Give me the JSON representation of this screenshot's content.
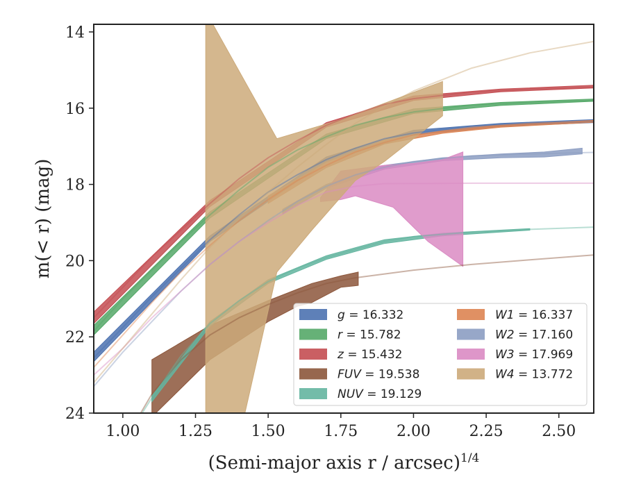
{
  "chart_data": {
    "type": "line",
    "xlabel": "(Semi-major axis r / arcsec)",
    "xlabel_exponent": "1/4",
    "ylabel": "m(< r) (mag)",
    "xlim": [
      0.9,
      2.62
    ],
    "ylim": [
      24,
      13.8
    ],
    "y_inverted": true,
    "xticks": [
      "1.00",
      "1.25",
      "1.50",
      "1.75",
      "2.00",
      "2.25",
      "2.50"
    ],
    "yticks": [
      "14",
      "16",
      "18",
      "20",
      "22",
      "24"
    ],
    "grid": false,
    "legend_location": "lower-right",
    "series": [
      {
        "name": "g",
        "value": "16.332",
        "color": "#4c72b0",
        "faint_curve": [
          [
            0.9,
            22.55
          ],
          [
            1.0,
            21.75
          ],
          [
            1.1,
            20.95
          ],
          [
            1.2,
            20.2
          ],
          [
            1.3,
            19.45
          ],
          [
            1.4,
            18.8
          ],
          [
            1.5,
            18.2
          ],
          [
            1.6,
            17.75
          ],
          [
            1.7,
            17.35
          ],
          [
            1.8,
            17.05
          ],
          [
            1.9,
            16.8
          ],
          [
            2.0,
            16.65
          ],
          [
            2.2,
            16.47
          ],
          [
            2.4,
            16.4
          ],
          [
            2.62,
            16.35
          ]
        ],
        "band_upper": [
          [
            0.9,
            22.4
          ],
          [
            1.3,
            19.35
          ],
          [
            1.7,
            17.28
          ],
          [
            2.0,
            16.58
          ],
          [
            2.3,
            16.4
          ],
          [
            2.62,
            16.3
          ]
        ],
        "band_lower": [
          [
            0.9,
            22.65
          ],
          [
            1.3,
            19.5
          ],
          [
            1.7,
            17.4
          ],
          [
            2.0,
            16.7
          ],
          [
            2.3,
            16.48
          ],
          [
            2.62,
            16.38
          ]
        ]
      },
      {
        "name": "r",
        "value": "15.782",
        "color": "#55a868",
        "faint_curve": [
          [
            0.9,
            21.85
          ],
          [
            1.0,
            21.0
          ],
          [
            1.1,
            20.25
          ],
          [
            1.2,
            19.5
          ],
          [
            1.3,
            18.8
          ],
          [
            1.4,
            18.15
          ],
          [
            1.5,
            17.55
          ],
          [
            1.6,
            17.1
          ],
          [
            1.7,
            16.75
          ],
          [
            1.8,
            16.45
          ],
          [
            1.9,
            16.25
          ],
          [
            2.0,
            16.1
          ],
          [
            2.2,
            15.92
          ],
          [
            2.4,
            15.85
          ],
          [
            2.62,
            15.8
          ]
        ],
        "band_upper": [
          [
            0.9,
            21.7
          ],
          [
            1.3,
            18.72
          ],
          [
            1.7,
            16.68
          ],
          [
            2.0,
            16.02
          ],
          [
            2.3,
            15.85
          ],
          [
            2.62,
            15.76
          ]
        ],
        "band_lower": [
          [
            0.9,
            21.95
          ],
          [
            1.3,
            18.88
          ],
          [
            1.7,
            16.8
          ],
          [
            2.0,
            16.14
          ],
          [
            2.3,
            15.93
          ],
          [
            2.62,
            15.82
          ]
        ]
      },
      {
        "name": "z",
        "value": "15.432",
        "color": "#c44e52",
        "faint_curve": [
          [
            0.9,
            21.5
          ],
          [
            1.0,
            20.7
          ],
          [
            1.1,
            19.9
          ],
          [
            1.2,
            19.2
          ],
          [
            1.3,
            18.5
          ],
          [
            1.4,
            17.85
          ],
          [
            1.5,
            17.3
          ],
          [
            1.6,
            16.85
          ],
          [
            1.7,
            16.45
          ],
          [
            1.8,
            16.15
          ],
          [
            1.9,
            15.9
          ],
          [
            2.0,
            15.75
          ],
          [
            2.2,
            15.58
          ],
          [
            2.4,
            15.5
          ],
          [
            2.62,
            15.45
          ]
        ],
        "band_upper": [
          [
            0.9,
            21.35
          ],
          [
            1.3,
            18.42
          ],
          [
            1.7,
            16.38
          ],
          [
            2.0,
            15.68
          ],
          [
            2.3,
            15.5
          ],
          [
            2.62,
            15.4
          ]
        ],
        "band_lower": [
          [
            0.9,
            21.65
          ],
          [
            1.3,
            18.58
          ],
          [
            1.7,
            16.5
          ],
          [
            2.0,
            15.8
          ],
          [
            2.3,
            15.57
          ],
          [
            2.62,
            15.47
          ]
        ]
      },
      {
        "name": "FUV",
        "value": "19.538",
        "color": "#8c563b",
        "faint_curve": [
          [
            0.9,
            26.5
          ],
          [
            1.0,
            24.8
          ],
          [
            1.1,
            23.5
          ],
          [
            1.2,
            22.6
          ],
          [
            1.3,
            21.95
          ],
          [
            1.4,
            21.5
          ],
          [
            1.5,
            21.15
          ],
          [
            1.6,
            20.85
          ],
          [
            1.7,
            20.6
          ],
          [
            1.8,
            20.45
          ],
          [
            2.0,
            20.25
          ],
          [
            2.2,
            20.1
          ],
          [
            2.4,
            19.98
          ],
          [
            2.62,
            19.85
          ]
        ],
        "band_upper": [
          [
            1.1,
            22.6
          ],
          [
            1.3,
            21.7
          ],
          [
            1.5,
            21.05
          ],
          [
            1.6,
            20.75
          ],
          [
            1.65,
            20.6
          ],
          [
            1.75,
            20.4
          ],
          [
            1.81,
            20.3
          ]
        ],
        "band_lower": [
          [
            1.1,
            24.1
          ],
          [
            1.3,
            22.6
          ],
          [
            1.5,
            21.6
          ],
          [
            1.6,
            21.2
          ],
          [
            1.65,
            21.1
          ],
          [
            1.75,
            20.7
          ],
          [
            1.81,
            20.65
          ]
        ]
      },
      {
        "name": "NUV",
        "value": "19.129",
        "color": "#64b5a0",
        "faint_curve": [
          [
            0.9,
            26.2
          ],
          [
            1.0,
            24.8
          ],
          [
            1.1,
            23.6
          ],
          [
            1.2,
            22.5
          ],
          [
            1.3,
            21.65
          ],
          [
            1.4,
            21.05
          ],
          [
            1.5,
            20.55
          ],
          [
            1.6,
            20.2
          ],
          [
            1.7,
            19.92
          ],
          [
            1.8,
            19.7
          ],
          [
            1.9,
            19.5
          ],
          [
            2.0,
            19.37
          ],
          [
            2.2,
            19.25
          ],
          [
            2.4,
            19.18
          ],
          [
            2.62,
            19.12
          ]
        ],
        "band_upper": [
          [
            1.1,
            23.55
          ],
          [
            1.3,
            21.6
          ],
          [
            1.5,
            20.5
          ],
          [
            1.7,
            19.87
          ],
          [
            1.9,
            19.45
          ],
          [
            2.1,
            19.28
          ],
          [
            2.4,
            19.16
          ]
        ],
        "band_lower": [
          [
            1.1,
            23.7
          ],
          [
            1.3,
            21.72
          ],
          [
            1.5,
            20.6
          ],
          [
            1.7,
            19.97
          ],
          [
            1.9,
            19.55
          ],
          [
            2.1,
            19.35
          ],
          [
            2.4,
            19.2
          ]
        ]
      },
      {
        "name": "W1",
        "value": "16.337",
        "color": "#dd8452",
        "faint_curve": [
          [
            0.9,
            22.8
          ],
          [
            1.0,
            21.95
          ],
          [
            1.1,
            21.1
          ],
          [
            1.2,
            20.3
          ],
          [
            1.3,
            19.6
          ],
          [
            1.4,
            18.95
          ],
          [
            1.5,
            18.4
          ],
          [
            1.6,
            17.9
          ],
          [
            1.7,
            17.5
          ],
          [
            1.8,
            17.15
          ],
          [
            1.9,
            16.9
          ],
          [
            2.0,
            16.7
          ],
          [
            2.2,
            16.5
          ],
          [
            2.4,
            16.4
          ],
          [
            2.62,
            16.34
          ]
        ],
        "band_upper": [
          [
            1.5,
            18.3
          ],
          [
            1.7,
            17.42
          ],
          [
            1.9,
            16.84
          ],
          [
            2.1,
            16.6
          ],
          [
            2.3,
            16.45
          ],
          [
            2.62,
            16.32
          ]
        ],
        "band_lower": [
          [
            1.5,
            18.5
          ],
          [
            1.7,
            17.56
          ],
          [
            1.9,
            16.94
          ],
          [
            2.1,
            16.66
          ],
          [
            2.3,
            16.5
          ],
          [
            2.62,
            16.37
          ]
        ]
      },
      {
        "name": "W2",
        "value": "17.160",
        "color": "#8c9dc2",
        "faint_curve": [
          [
            0.9,
            23.3
          ],
          [
            1.0,
            22.4
          ],
          [
            1.1,
            21.6
          ],
          [
            1.2,
            20.8
          ],
          [
            1.3,
            20.1
          ],
          [
            1.4,
            19.5
          ],
          [
            1.5,
            18.95
          ],
          [
            1.6,
            18.45
          ],
          [
            1.7,
            18.05
          ],
          [
            1.8,
            17.75
          ],
          [
            1.9,
            17.55
          ],
          [
            2.0,
            17.4
          ],
          [
            2.2,
            17.25
          ],
          [
            2.4,
            17.2
          ],
          [
            2.62,
            17.16
          ]
        ],
        "band_upper": [
          [
            1.55,
            18.65
          ],
          [
            1.7,
            18.0
          ],
          [
            1.9,
            17.5
          ],
          [
            2.1,
            17.3
          ],
          [
            2.3,
            17.2
          ],
          [
            2.45,
            17.15
          ],
          [
            2.58,
            17.05
          ]
        ],
        "band_lower": [
          [
            1.55,
            18.78
          ],
          [
            1.7,
            18.1
          ],
          [
            1.9,
            17.6
          ],
          [
            2.1,
            17.38
          ],
          [
            2.3,
            17.3
          ],
          [
            2.45,
            17.28
          ],
          [
            2.58,
            17.2
          ]
        ]
      },
      {
        "name": "W3",
        "value": "17.969",
        "color": "#da8bc3",
        "faint_curve": [
          [
            0.9,
            23.0
          ],
          [
            1.0,
            22.3
          ],
          [
            1.1,
            21.5
          ],
          [
            1.2,
            20.8
          ],
          [
            1.3,
            20.1
          ],
          [
            1.4,
            19.5
          ],
          [
            1.5,
            19.0
          ],
          [
            1.6,
            18.55
          ],
          [
            1.7,
            18.2
          ],
          [
            1.8,
            18.05
          ],
          [
            1.9,
            17.98
          ],
          [
            2.2,
            17.97
          ],
          [
            2.62,
            17.97
          ]
        ],
        "band_upper": [
          [
            1.68,
            18.35
          ],
          [
            1.75,
            17.65
          ],
          [
            1.9,
            17.5
          ],
          [
            2.0,
            17.45
          ],
          [
            2.1,
            17.35
          ],
          [
            2.17,
            17.15
          ]
        ],
        "band_lower": [
          [
            1.68,
            18.45
          ],
          [
            1.75,
            18.4
          ],
          [
            1.8,
            18.3
          ],
          [
            1.93,
            18.6
          ],
          [
            2.05,
            19.5
          ],
          [
            2.17,
            20.15
          ]
        ]
      },
      {
        "name": "W4",
        "value": "13.772",
        "color": "#ccaa7a",
        "faint_curve": [
          [
            0.9,
            23.2
          ],
          [
            1.0,
            22.3
          ],
          [
            1.1,
            21.4
          ],
          [
            1.2,
            20.5
          ],
          [
            1.3,
            19.65
          ],
          [
            1.4,
            18.9
          ],
          [
            1.5,
            18.2
          ],
          [
            1.6,
            17.55
          ],
          [
            1.7,
            16.95
          ],
          [
            1.8,
            16.4
          ],
          [
            1.9,
            15.95
          ],
          [
            2.0,
            15.55
          ],
          [
            2.2,
            14.95
          ],
          [
            2.4,
            14.55
          ],
          [
            2.62,
            14.25
          ]
        ],
        "band_upper": [
          [
            1.285,
            13.8
          ],
          [
            1.31,
            13.8
          ],
          [
            1.53,
            16.8
          ],
          [
            1.75,
            16.3
          ],
          [
            2.1,
            15.3
          ]
        ],
        "band_lower": [
          [
            1.285,
            24.0
          ],
          [
            1.42,
            24.0
          ],
          [
            1.53,
            20.3
          ],
          [
            1.65,
            19.2
          ],
          [
            1.8,
            17.9
          ],
          [
            1.9,
            17.4
          ],
          [
            2.1,
            16.2
          ]
        ]
      }
    ]
  }
}
